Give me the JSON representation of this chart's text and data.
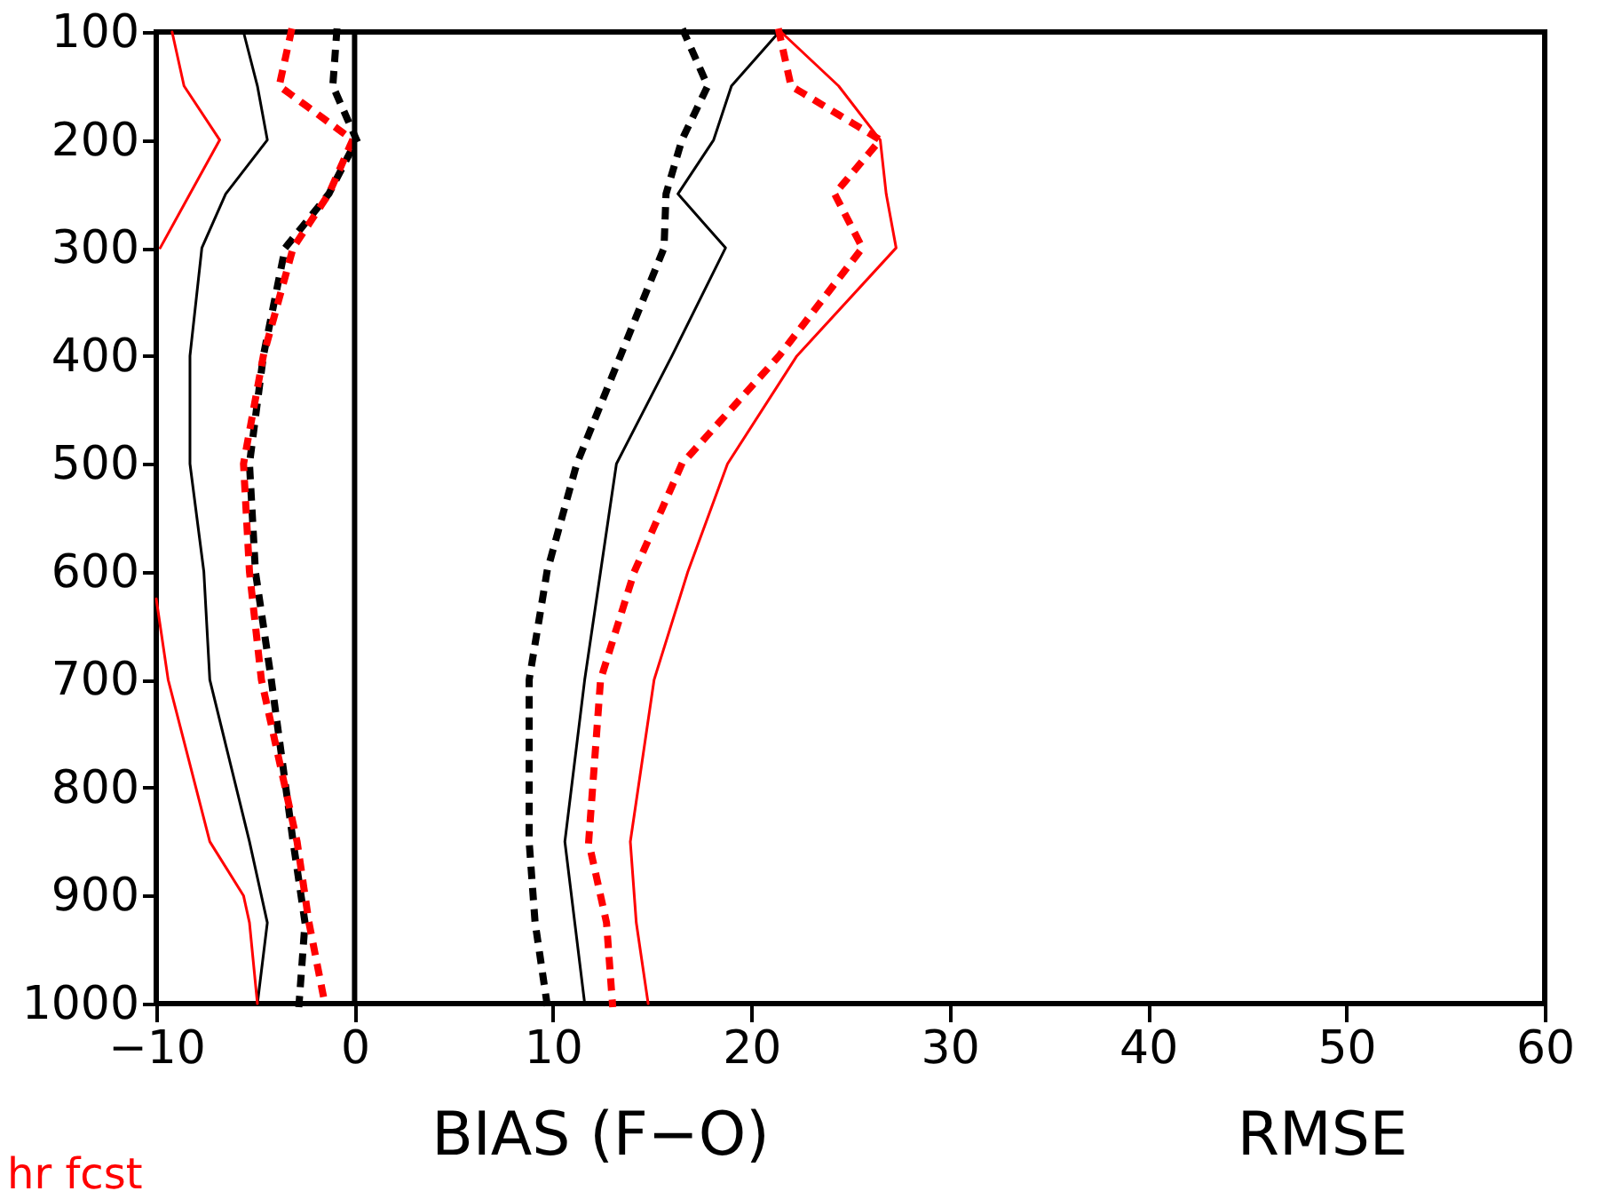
{
  "chart_data": {
    "type": "line",
    "xlim": [
      -10,
      60
    ],
    "xticks": [
      -10,
      0,
      10,
      20,
      30,
      40,
      50,
      60
    ],
    "ylim": [
      1000,
      100
    ],
    "yticks": [
      100,
      200,
      300,
      400,
      500,
      600,
      700,
      800,
      900,
      1000
    ],
    "grid": false,
    "series": [
      {
        "color": "#000000",
        "line_style": "solid",
        "x": [
          -5.6,
          -4.9,
          -4.4,
          -6.5,
          -7.7,
          -8.3,
          -8.3,
          -7.6,
          -7.3,
          -5.3,
          -4.4,
          -4.9
        ],
        "values": [
          100,
          150,
          200,
          250,
          300,
          400,
          500,
          600,
          700,
          850,
          925,
          1000
        ]
      },
      {
        "color": "#ff0000",
        "line_style": "solid",
        "x": [
          -9.2,
          -8.6,
          -6.8,
          -8.3,
          -9.8
        ],
        "values": [
          100,
          150,
          200,
          250,
          300
        ]
      },
      {
        "color": "#ff0000",
        "line_style": "solid",
        "x": [
          -10,
          -9.4,
          -7.3,
          -5.6,
          -5.3,
          -4.9
        ],
        "values": [
          625,
          700,
          850,
          900,
          925,
          1000
        ]
      },
      {
        "color": "#000000",
        "line_style": "dotted",
        "x": [
          -0.9,
          -1.1,
          0.1,
          -1.3,
          -3.5,
          -4.6,
          -5.3,
          -5.0,
          -4.2,
          -3.1,
          -2.5,
          -2.8
        ],
        "values": [
          100,
          150,
          200,
          250,
          300,
          400,
          500,
          600,
          700,
          850,
          925,
          1000
        ]
      },
      {
        "color": "#ff0000",
        "line_style": "dotted",
        "x": [
          -3.2,
          -3.8,
          -0.1,
          -1.3,
          -3.1,
          -4.6,
          -5.6,
          -5.3,
          -4.7,
          -2.9,
          -2.3,
          -1.5
        ],
        "values": [
          100,
          150,
          200,
          250,
          300,
          400,
          500,
          600,
          700,
          850,
          925,
          1000
        ]
      },
      {
        "color": "#000000",
        "line_style": "solid",
        "x": [
          21.4,
          19.0,
          18.1,
          16.3,
          18.7,
          16.0,
          13.2,
          12.4,
          11.6,
          10.6,
          11.1,
          11.6
        ],
        "values": [
          100,
          150,
          200,
          250,
          300,
          400,
          500,
          600,
          700,
          850,
          925,
          1000
        ]
      },
      {
        "color": "#000000",
        "line_style": "dotted",
        "x": [
          16.6,
          17.8,
          16.5,
          15.7,
          15.6,
          13.4,
          11.2,
          9.7,
          8.8,
          8.8,
          9.1,
          9.7
        ],
        "values": [
          100,
          150,
          200,
          250,
          300,
          400,
          500,
          600,
          700,
          850,
          925,
          1000
        ]
      },
      {
        "color": "#ff0000",
        "line_style": "solid",
        "x": [
          21.5,
          24.4,
          26.5,
          26.8,
          27.3,
          22.3,
          18.8,
          16.8,
          15.1,
          13.9,
          14.2,
          14.8
        ],
        "values": [
          100,
          150,
          200,
          250,
          300,
          400,
          500,
          600,
          700,
          850,
          925,
          1000
        ]
      },
      {
        "color": "#ff0000",
        "line_style": "dotted",
        "x": [
          21.4,
          22.0,
          26.5,
          24.2,
          25.6,
          21.4,
          16.5,
          14.1,
          12.4,
          11.8,
          12.7,
          13.0
        ],
        "values": [
          100,
          150,
          200,
          250,
          300,
          400,
          500,
          600,
          700,
          850,
          925,
          1000
        ]
      }
    ],
    "ref_lines": [
      {
        "axis": "x",
        "value": 0,
        "color": "#000000"
      }
    ],
    "annotations": [
      "BIAS (F−O)",
      "RMSE",
      "hr fcst"
    ]
  }
}
